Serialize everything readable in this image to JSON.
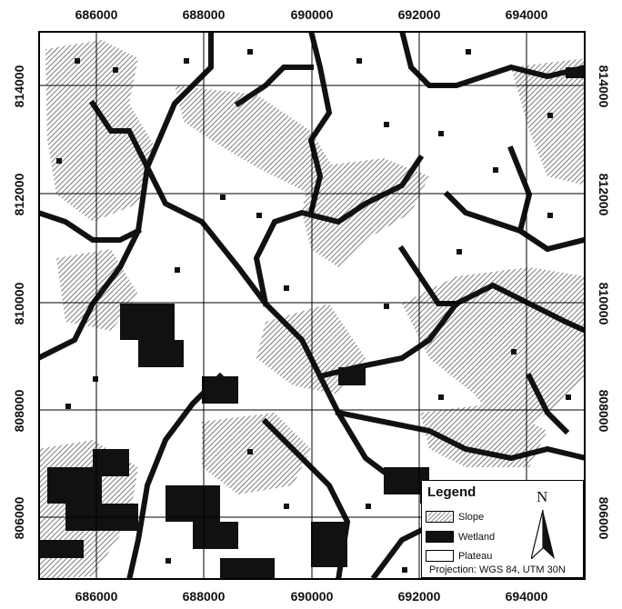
{
  "axes": {
    "x_ticks": [
      "686000",
      "688000",
      "690000",
      "692000",
      "694000"
    ],
    "y_ticks": [
      "814000",
      "812000",
      "810000",
      "808000",
      "806000"
    ]
  },
  "legend": {
    "title": "Legend",
    "items": [
      {
        "label": "Slope",
        "icon": "hatch-swatch"
      },
      {
        "label": "Wetland",
        "icon": "solid-black-swatch"
      },
      {
        "label": "Plateau",
        "icon": "white-swatch"
      }
    ],
    "north_label": "N",
    "projection": "Projection: WGS 84, UTM 30N"
  },
  "colors": {
    "wetland": "#111111",
    "slope_hatch": "#555555",
    "plateau": "#ffffff",
    "grid": "#000000"
  }
}
